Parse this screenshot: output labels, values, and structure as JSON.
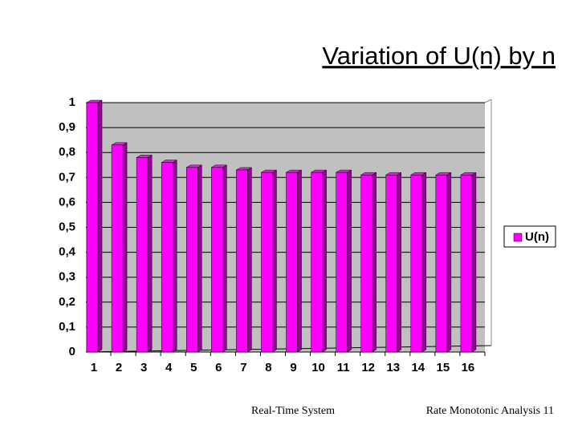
{
  "chart_data": {
    "type": "bar",
    "title": "Variation of U(n) by n",
    "categories": [
      "1",
      "2",
      "3",
      "4",
      "5",
      "6",
      "7",
      "8",
      "9",
      "10",
      "11",
      "12",
      "13",
      "14",
      "15",
      "16"
    ],
    "series": [
      {
        "name": "U(n)",
        "color": "#ff00ff",
        "values": [
          1,
          0.83,
          0.78,
          0.76,
          0.74,
          0.74,
          0.73,
          0.72,
          0.72,
          0.72,
          0.72,
          0.71,
          0.71,
          0.71,
          0.71,
          0.71
        ]
      }
    ],
    "ylim": [
      0,
      1
    ],
    "yticks": [
      0,
      {
        "value": 0.1,
        "label": "0,1"
      },
      {
        "value": 0.2,
        "label": "0,2"
      },
      {
        "value": 0.3,
        "label": "0,3"
      },
      {
        "value": 0.4,
        "label": "0,4"
      },
      {
        "value": 0.5,
        "label": "0,5"
      },
      {
        "value": 0.6,
        "label": "0,6"
      },
      {
        "value": 0.7,
        "label": "0,7"
      },
      {
        "value": 0.8,
        "label": "0,8"
      },
      {
        "value": 0.9,
        "label": "0,9"
      },
      1
    ],
    "grid": true,
    "legend": "right"
  },
  "footer": {
    "left": "Real-Time System",
    "right": "Rate Monotonic Analysis 11"
  }
}
